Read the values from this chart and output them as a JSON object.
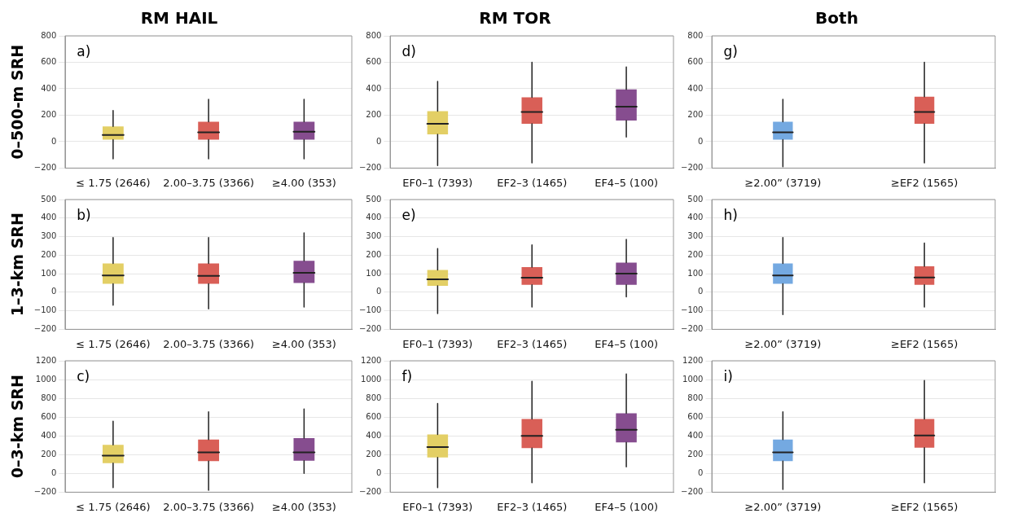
{
  "chart_data": [
    {
      "type": "box",
      "title": "RM HAIL",
      "ylabel": "0–500-m SRH",
      "categories": [
        "≤ 1.75 (2646)",
        "2.00–3.75 (3366)",
        "≥4.00 (353)"
      ],
      "colors": [
        "#e3cf65",
        "#d95f57",
        "#864d8f"
      ],
      "boxes": [
        {
          "low": -130,
          "q1": 15,
          "median": 50,
          "q3": 115,
          "high": 235
        },
        {
          "low": -130,
          "q1": 15,
          "median": 70,
          "q3": 150,
          "high": 320
        },
        {
          "low": -130,
          "q1": 15,
          "median": 75,
          "q3": 150,
          "high": 320
        }
      ],
      "ylim": [
        -200,
        800
      ],
      "yticks": [
        -200,
        0,
        200,
        400,
        600,
        800
      ],
      "grid": "y",
      "annotations": [
        "a)"
      ]
    },
    {
      "type": "box",
      "title": "RM TOR",
      "categories": [
        "EF0–1 (7393)",
        "EF2–3 (1465)",
        "EF4–5 (100)"
      ],
      "colors": [
        "#e3cf65",
        "#d95f57",
        "#864d8f"
      ],
      "boxes": [
        {
          "low": -180,
          "q1": 55,
          "median": 135,
          "q3": 230,
          "high": 455
        },
        {
          "low": -160,
          "q1": 135,
          "median": 225,
          "q3": 335,
          "high": 600
        },
        {
          "low": 35,
          "q1": 160,
          "median": 265,
          "q3": 395,
          "high": 565
        }
      ],
      "ylim": [
        -200,
        800
      ],
      "yticks": [
        -200,
        0,
        200,
        400,
        600,
        800
      ],
      "grid": "y",
      "annotations": [
        "d)"
      ]
    },
    {
      "type": "box",
      "title": "Both",
      "categories": [
        "≥2.00” (3719)",
        "≥EF2 (1565)"
      ],
      "colors": [
        "#74a9e1",
        "#d95f57"
      ],
      "boxes": [
        {
          "low": -190,
          "q1": 15,
          "median": 70,
          "q3": 150,
          "high": 320
        },
        {
          "low": -160,
          "q1": 135,
          "median": 225,
          "q3": 340,
          "high": 600
        }
      ],
      "ylim": [
        -200,
        800
      ],
      "yticks": [
        -200,
        0,
        200,
        400,
        600,
        800
      ],
      "grid": "y",
      "annotations": [
        "g)"
      ]
    },
    {
      "type": "box",
      "ylabel": "1–3-km SRH",
      "categories": [
        "≤ 1.75 (2646)",
        "2.00–3.75 (3366)",
        "≥4.00 (353)"
      ],
      "colors": [
        "#e3cf65",
        "#d95f57",
        "#864d8f"
      ],
      "boxes": [
        {
          "low": -70,
          "q1": 45,
          "median": 90,
          "q3": 155,
          "high": 295
        },
        {
          "low": -90,
          "q1": 45,
          "median": 88,
          "q3": 155,
          "high": 295
        },
        {
          "low": -80,
          "q1": 50,
          "median": 105,
          "q3": 170,
          "high": 320
        }
      ],
      "ylim": [
        -200,
        500
      ],
      "yticks": [
        -200,
        -100,
        0,
        100,
        200,
        300,
        400,
        500
      ],
      "grid": "y",
      "annotations": [
        "b)"
      ]
    },
    {
      "type": "box",
      "categories": [
        "EF0–1 (7393)",
        "EF2–3 (1465)",
        "EF4–5 (100)"
      ],
      "colors": [
        "#e3cf65",
        "#d95f57",
        "#864d8f"
      ],
      "boxes": [
        {
          "low": -115,
          "q1": 35,
          "median": 70,
          "q3": 120,
          "high": 235
        },
        {
          "low": -80,
          "q1": 40,
          "median": 78,
          "q3": 135,
          "high": 255
        },
        {
          "low": -25,
          "q1": 40,
          "median": 100,
          "q3": 160,
          "high": 285
        }
      ],
      "ylim": [
        -200,
        500
      ],
      "yticks": [
        -200,
        -100,
        0,
        100,
        200,
        300,
        400,
        500
      ],
      "grid": "y",
      "annotations": [
        "e)"
      ]
    },
    {
      "type": "box",
      "categories": [
        "≥2.00” (3719)",
        "≥EF2 (1565)"
      ],
      "colors": [
        "#74a9e1",
        "#d95f57"
      ],
      "boxes": [
        {
          "low": -120,
          "q1": 45,
          "median": 90,
          "q3": 155,
          "high": 295
        },
        {
          "low": -80,
          "q1": 40,
          "median": 80,
          "q3": 140,
          "high": 265
        }
      ],
      "ylim": [
        -200,
        500
      ],
      "yticks": [
        -200,
        -100,
        0,
        100,
        200,
        300,
        400,
        500
      ],
      "grid": "y",
      "annotations": [
        "h)"
      ]
    },
    {
      "type": "box",
      "ylabel": "0–3-km SRH",
      "categories": [
        "≤ 1.75 (2646)",
        "2.00–3.75 (3366)",
        "≥4.00 (353)"
      ],
      "colors": [
        "#e3cf65",
        "#d95f57",
        "#864d8f"
      ],
      "boxes": [
        {
          "low": -150,
          "q1": 110,
          "median": 190,
          "q3": 305,
          "high": 555
        },
        {
          "low": -180,
          "q1": 130,
          "median": 225,
          "q3": 360,
          "high": 655
        },
        {
          "low": 0,
          "q1": 135,
          "median": 225,
          "q3": 375,
          "high": 685
        }
      ],
      "ylim": [
        -200,
        1200
      ],
      "yticks": [
        -200,
        0,
        200,
        400,
        600,
        800,
        1000,
        1200
      ],
      "grid": "y",
      "annotations": [
        "c)"
      ]
    },
    {
      "type": "box",
      "categories": [
        "EF0–1 (7393)",
        "EF2–3 (1465)",
        "EF4–5 (100)"
      ],
      "colors": [
        "#e3cf65",
        "#d95f57",
        "#864d8f"
      ],
      "boxes": [
        {
          "low": -150,
          "q1": 170,
          "median": 280,
          "q3": 415,
          "high": 745
        },
        {
          "low": -100,
          "q1": 270,
          "median": 400,
          "q3": 580,
          "high": 980
        },
        {
          "low": 70,
          "q1": 330,
          "median": 465,
          "q3": 640,
          "high": 1060
        }
      ],
      "ylim": [
        -200,
        1200
      ],
      "yticks": [
        -200,
        0,
        200,
        400,
        600,
        800,
        1000,
        1200
      ],
      "grid": "y",
      "annotations": [
        "f)"
      ]
    },
    {
      "type": "box",
      "categories": [
        "≥2.00” (3719)",
        "≥EF2 (1565)"
      ],
      "colors": [
        "#74a9e1",
        "#d95f57"
      ],
      "boxes": [
        {
          "low": -170,
          "q1": 130,
          "median": 225,
          "q3": 360,
          "high": 655
        },
        {
          "low": -100,
          "q1": 275,
          "median": 405,
          "q3": 580,
          "high": 990
        }
      ],
      "ylim": [
        -200,
        1200
      ],
      "yticks": [
        -200,
        0,
        200,
        400,
        600,
        800,
        1000,
        1200
      ],
      "grid": "y",
      "annotations": [
        "i)"
      ]
    }
  ]
}
